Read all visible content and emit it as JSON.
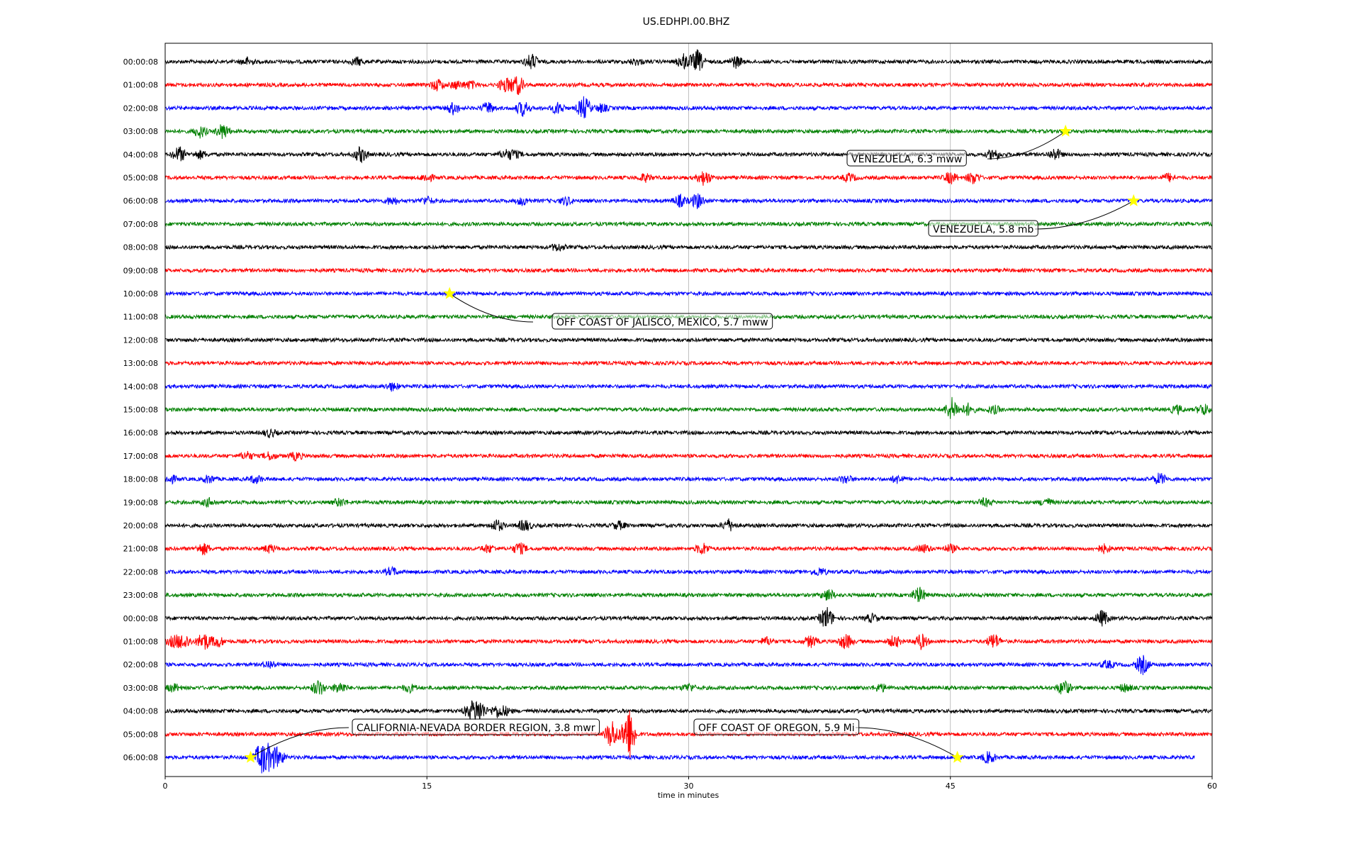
{
  "chart_data": {
    "type": "line",
    "title": "US.EDHPI.00.BHZ",
    "xlabel": "time in minutes",
    "ylabel": "",
    "xlim": [
      0,
      60
    ],
    "xticks": [
      "0",
      "15",
      "30",
      "45",
      "60"
    ],
    "grid": "vertical lines at 15, 30, 45",
    "trace_colors": [
      "#000000",
      "#ff0000",
      "#0000ff",
      "#008000"
    ],
    "event_marker_color": "#ffff00",
    "rows": [
      {
        "label": "00:00:08",
        "events": [
          [
            21,
            4
          ],
          [
            30.5,
            6
          ],
          [
            29.7,
            4
          ],
          [
            32.7,
            3
          ],
          [
            4.7,
            2
          ],
          [
            11,
            2
          ],
          [
            27,
            1.5
          ]
        ]
      },
      {
        "label": "01:00:08",
        "events": [
          [
            15.6,
            3
          ],
          [
            16.7,
            2
          ],
          [
            17.5,
            2
          ],
          [
            19.5,
            4
          ],
          [
            20.2,
            5
          ]
        ]
      },
      {
        "label": "02:00:08",
        "events": [
          [
            16.5,
            3
          ],
          [
            18.5,
            3
          ],
          [
            20.5,
            4
          ],
          [
            22.5,
            3
          ],
          [
            24,
            6
          ],
          [
            25,
            2
          ]
        ]
      },
      {
        "label": "03:00:08",
        "events": [
          [
            2,
            3
          ],
          [
            3.3,
            4
          ]
        ]
      },
      {
        "label": "04:00:08",
        "events": [
          [
            0.8,
            4
          ],
          [
            2,
            2
          ],
          [
            11.2,
            4
          ],
          [
            19.5,
            2
          ],
          [
            20,
            2
          ],
          [
            47.5,
            3
          ],
          [
            51,
            3
          ]
        ]
      },
      {
        "label": "05:00:08",
        "events": [
          [
            15,
            2
          ],
          [
            27.5,
            2
          ],
          [
            30.9,
            4
          ],
          [
            39.2,
            2
          ],
          [
            45,
            3
          ],
          [
            46.3,
            3
          ],
          [
            57.5,
            2
          ]
        ]
      },
      {
        "label": "06:00:08",
        "events": [
          [
            13,
            2
          ],
          [
            15,
            2
          ],
          [
            20.5,
            2
          ],
          [
            23,
            2
          ],
          [
            29.5,
            3
          ],
          [
            30.5,
            4
          ]
        ]
      },
      {
        "label": "07:00:08",
        "events": []
      },
      {
        "label": "08:00:08",
        "events": [
          [
            22.5,
            2
          ]
        ]
      },
      {
        "label": "09:00:08",
        "events": []
      },
      {
        "label": "10:00:08",
        "events": []
      },
      {
        "label": "11:00:08",
        "events": []
      },
      {
        "label": "12:00:08",
        "events": []
      },
      {
        "label": "13:00:08",
        "events": []
      },
      {
        "label": "14:00:08",
        "events": [
          [
            13,
            2
          ]
        ]
      },
      {
        "label": "15:00:08",
        "events": [
          [
            45.1,
            6
          ],
          [
            46,
            3
          ],
          [
            47.5,
            2
          ],
          [
            58,
            2
          ],
          [
            59.5,
            3
          ]
        ]
      },
      {
        "label": "16:00:08",
        "events": [
          [
            6,
            2
          ]
        ]
      },
      {
        "label": "17:00:08",
        "events": [
          [
            4.7,
            2
          ],
          [
            6,
            2
          ],
          [
            7.5,
            2
          ]
        ]
      },
      {
        "label": "18:00:08",
        "events": [
          [
            0.3,
            2
          ],
          [
            2.5,
            2
          ],
          [
            5.2,
            2
          ],
          [
            39,
            2
          ],
          [
            42,
            2
          ],
          [
            57,
            3
          ]
        ]
      },
      {
        "label": "19:00:08",
        "events": [
          [
            2.5,
            2
          ],
          [
            10,
            2
          ],
          [
            47,
            2
          ],
          [
            50.5,
            2
          ]
        ]
      },
      {
        "label": "20:00:08",
        "events": [
          [
            19,
            3
          ],
          [
            20.6,
            3
          ],
          [
            26,
            2
          ],
          [
            32.3,
            3
          ]
        ]
      },
      {
        "label": "21:00:08",
        "events": [
          [
            2.2,
            3
          ],
          [
            6,
            2
          ],
          [
            18.5,
            2
          ],
          [
            20.3,
            3
          ],
          [
            30.8,
            3
          ],
          [
            43.5,
            2
          ],
          [
            45,
            2
          ],
          [
            53.8,
            2
          ]
        ]
      },
      {
        "label": "22:00:08",
        "events": [
          [
            13,
            2
          ],
          [
            37.5,
            2
          ]
        ]
      },
      {
        "label": "23:00:08",
        "events": [
          [
            38,
            3
          ],
          [
            43.2,
            4
          ]
        ]
      },
      {
        "label": "00:00:08",
        "events": [
          [
            37.9,
            6
          ],
          [
            40.5,
            2
          ],
          [
            53.7,
            4
          ]
        ]
      },
      {
        "label": "01:00:08",
        "events": [
          [
            0.5,
            3
          ],
          [
            1.1,
            4
          ],
          [
            2.2,
            5
          ],
          [
            3,
            3
          ],
          [
            34.5,
            2
          ],
          [
            37,
            3
          ],
          [
            39,
            4
          ],
          [
            41.8,
            3
          ],
          [
            43.3,
            4
          ],
          [
            47.5,
            4
          ]
        ]
      },
      {
        "label": "02:00:08",
        "events": [
          [
            6,
            2
          ],
          [
            54,
            2
          ],
          [
            56,
            5
          ]
        ]
      },
      {
        "label": "03:00:08",
        "events": [
          [
            0.5,
            2
          ],
          [
            8.8,
            4
          ],
          [
            10,
            3
          ],
          [
            14,
            2
          ],
          [
            30,
            2
          ],
          [
            41,
            2
          ],
          [
            51.5,
            4
          ],
          [
            55,
            2
          ]
        ]
      },
      {
        "label": "04:00:08",
        "events": [
          [
            17.5,
            4
          ],
          [
            18,
            6
          ],
          [
            19,
            3
          ],
          [
            19.5,
            2
          ]
        ]
      },
      {
        "label": "05:00:08",
        "events": [
          [
            25.6,
            8
          ],
          [
            26.5,
            5
          ],
          [
            26.6,
            10
          ]
        ]
      },
      {
        "label": "06:00:08",
        "events": [
          [
            5.5,
            8
          ],
          [
            6,
            6
          ],
          [
            6.5,
            4
          ],
          [
            47.2,
            3
          ]
        ]
      }
    ],
    "annotations": [
      {
        "label": "VENEZUELA, 6.3 mww",
        "row": 3,
        "x": 51.6
      },
      {
        "label": "VENEZUELA, 5.8 mb",
        "row": 6,
        "x": 55.5
      },
      {
        "label": "OFF COAST OF JALISCO, MEXICO, 5.7 mww",
        "row": 10,
        "x": 16.3
      },
      {
        "label": "CALIFORNIA-NEVADA BORDER REGION, 3.8 mwr",
        "row": 30,
        "x": 4.9
      },
      {
        "label": "OFF COAST OF OREGON, 5.9 Mi",
        "row": 30,
        "x": 45.4
      }
    ],
    "last_row_end": 59
  }
}
